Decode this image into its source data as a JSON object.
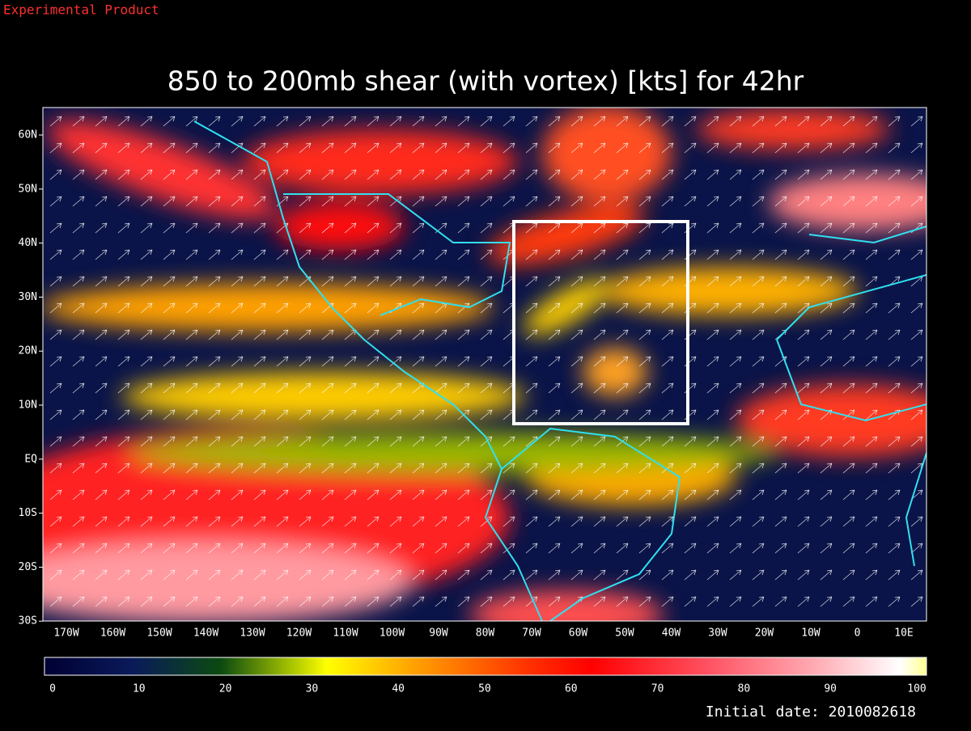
{
  "header": {
    "product": "Experimental Product",
    "title": "850 to 200mb shear (with vortex) [kts] for 42hr"
  },
  "map": {
    "lat_labels": [
      "60N",
      "50N",
      "40N",
      "30N",
      "20N",
      "10N",
      "EQ",
      "10S",
      "20S",
      "30S"
    ],
    "lon_labels": [
      "170W",
      "160W",
      "150W",
      "140W",
      "130W",
      "120W",
      "110W",
      "100W",
      "90W",
      "80W",
      "70W",
      "60W",
      "50W",
      "40W",
      "30W",
      "20W",
      "10W",
      "0",
      "10E"
    ]
  },
  "colorbar": {
    "ticks": [
      0,
      10,
      20,
      30,
      40,
      50,
      60,
      70,
      80,
      90,
      100
    ]
  },
  "footer": {
    "initial_date": "Initial date: 2010082618"
  }
}
